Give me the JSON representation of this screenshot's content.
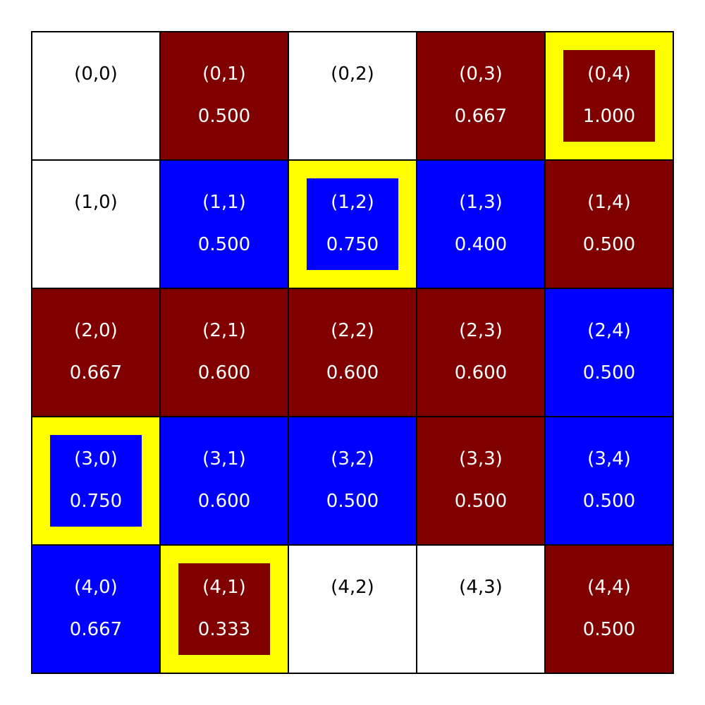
{
  "colors": {
    "empty": "#ffffff",
    "red": "#800000",
    "blue": "#0000ff",
    "highlight": "#ffff00",
    "text_dark": "#000000",
    "text_light": "#ffffff"
  },
  "cells": [
    {
      "coord": "(0,0)",
      "value": "",
      "fill": "empty",
      "highlight": false
    },
    {
      "coord": "(0,1)",
      "value": "0.500",
      "fill": "red",
      "highlight": false
    },
    {
      "coord": "(0,2)",
      "value": "",
      "fill": "empty",
      "highlight": false
    },
    {
      "coord": "(0,3)",
      "value": "0.667",
      "fill": "red",
      "highlight": false
    },
    {
      "coord": "(0,4)",
      "value": "1.000",
      "fill": "red",
      "highlight": true
    },
    {
      "coord": "(1,0)",
      "value": "",
      "fill": "empty",
      "highlight": false
    },
    {
      "coord": "(1,1)",
      "value": "0.500",
      "fill": "blue",
      "highlight": false
    },
    {
      "coord": "(1,2)",
      "value": "0.750",
      "fill": "blue",
      "highlight": true
    },
    {
      "coord": "(1,3)",
      "value": "0.400",
      "fill": "blue",
      "highlight": false
    },
    {
      "coord": "(1,4)",
      "value": "0.500",
      "fill": "red",
      "highlight": false
    },
    {
      "coord": "(2,0)",
      "value": "0.667",
      "fill": "red",
      "highlight": false
    },
    {
      "coord": "(2,1)",
      "value": "0.600",
      "fill": "red",
      "highlight": false
    },
    {
      "coord": "(2,2)",
      "value": "0.600",
      "fill": "red",
      "highlight": false
    },
    {
      "coord": "(2,3)",
      "value": "0.600",
      "fill": "red",
      "highlight": false
    },
    {
      "coord": "(2,4)",
      "value": "0.500",
      "fill": "blue",
      "highlight": false
    },
    {
      "coord": "(3,0)",
      "value": "0.750",
      "fill": "blue",
      "highlight": true
    },
    {
      "coord": "(3,1)",
      "value": "0.600",
      "fill": "blue",
      "highlight": false
    },
    {
      "coord": "(3,2)",
      "value": "0.500",
      "fill": "blue",
      "highlight": false
    },
    {
      "coord": "(3,3)",
      "value": "0.500",
      "fill": "red",
      "highlight": false
    },
    {
      "coord": "(3,4)",
      "value": "0.500",
      "fill": "blue",
      "highlight": false
    },
    {
      "coord": "(4,0)",
      "value": "0.667",
      "fill": "blue",
      "highlight": false
    },
    {
      "coord": "(4,1)",
      "value": "0.333",
      "fill": "red",
      "highlight": true
    },
    {
      "coord": "(4,2)",
      "value": "",
      "fill": "empty",
      "highlight": false
    },
    {
      "coord": "(4,3)",
      "value": "",
      "fill": "empty",
      "highlight": false
    },
    {
      "coord": "(4,4)",
      "value": "0.500",
      "fill": "red",
      "highlight": false
    }
  ]
}
